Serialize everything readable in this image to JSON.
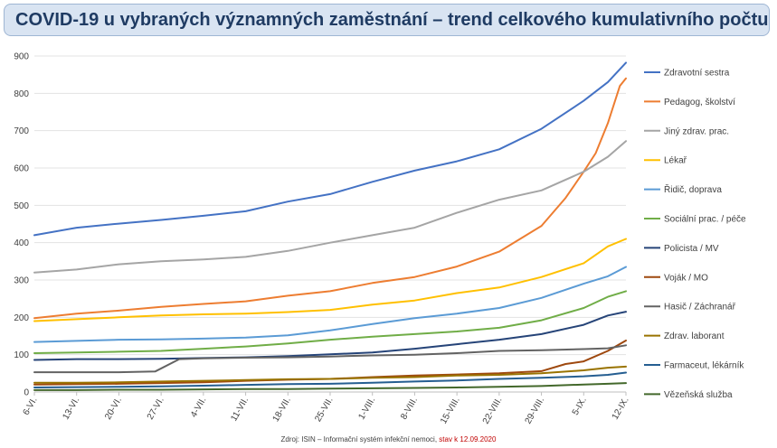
{
  "title": "COVID-19 u vybraných významných zaměstnání – trend celkového kumulativního počtu",
  "source": {
    "prefix": "Zdroj: ISIN – Informační systém infekční nemoci, ",
    "status": "stav k 12.09.2020"
  },
  "chart_data": {
    "type": "line",
    "xlabel": "",
    "ylabel": "",
    "ylim": [
      0,
      900
    ],
    "yticks": [
      0,
      100,
      200,
      300,
      400,
      500,
      600,
      700,
      800,
      900
    ],
    "x_tick_labels": [
      "6-VI.",
      "13-VI.",
      "20-VI.",
      "27-VI.",
      "4-VII.",
      "11-VII.",
      "18-VII.",
      "25-VII.",
      "1-VIII.",
      "8-VIII.",
      "15-VIII.",
      "22-VIII.",
      "29-VIII.",
      "5-IX.",
      "12-IX."
    ],
    "x_tick_days": [
      0,
      7,
      14,
      21,
      28,
      35,
      42,
      49,
      56,
      63,
      70,
      77,
      84,
      91,
      98
    ],
    "x_range_days": [
      0,
      98
    ],
    "grid": true,
    "legend_position": "right",
    "series": [
      {
        "name": "Zdravotní sestra",
        "color": "#4472c4",
        "points": [
          [
            0,
            420
          ],
          [
            7,
            440
          ],
          [
            14,
            451
          ],
          [
            21,
            461
          ],
          [
            28,
            472
          ],
          [
            35,
            484
          ],
          [
            42,
            510
          ],
          [
            49,
            530
          ],
          [
            56,
            563
          ],
          [
            63,
            593
          ],
          [
            70,
            618
          ],
          [
            77,
            650
          ],
          [
            84,
            705
          ],
          [
            91,
            780
          ],
          [
            95,
            830
          ],
          [
            98,
            882
          ]
        ]
      },
      {
        "name": "Pedagog, školství",
        "color": "#ed7d31",
        "points": [
          [
            0,
            198
          ],
          [
            7,
            210
          ],
          [
            14,
            218
          ],
          [
            21,
            228
          ],
          [
            28,
            236
          ],
          [
            35,
            243
          ],
          [
            42,
            258
          ],
          [
            49,
            270
          ],
          [
            56,
            292
          ],
          [
            63,
            308
          ],
          [
            70,
            336
          ],
          [
            77,
            376
          ],
          [
            84,
            445
          ],
          [
            88,
            520
          ],
          [
            91,
            590
          ],
          [
            93,
            640
          ],
          [
            95,
            720
          ],
          [
            97,
            820
          ],
          [
            98,
            840
          ]
        ]
      },
      {
        "name": "Jiný zdrav. prac.",
        "color": "#a5a5a5",
        "points": [
          [
            0,
            320
          ],
          [
            7,
            328
          ],
          [
            14,
            342
          ],
          [
            21,
            350
          ],
          [
            28,
            355
          ],
          [
            35,
            362
          ],
          [
            42,
            378
          ],
          [
            49,
            400
          ],
          [
            56,
            420
          ],
          [
            63,
            440
          ],
          [
            70,
            480
          ],
          [
            77,
            515
          ],
          [
            84,
            540
          ],
          [
            91,
            590
          ],
          [
            95,
            630
          ],
          [
            98,
            672
          ]
        ]
      },
      {
        "name": "Lékař",
        "color": "#ffc000",
        "points": [
          [
            0,
            190
          ],
          [
            7,
            195
          ],
          [
            14,
            200
          ],
          [
            21,
            205
          ],
          [
            28,
            208
          ],
          [
            35,
            210
          ],
          [
            42,
            214
          ],
          [
            49,
            220
          ],
          [
            56,
            234
          ],
          [
            63,
            245
          ],
          [
            70,
            265
          ],
          [
            77,
            280
          ],
          [
            84,
            308
          ],
          [
            91,
            345
          ],
          [
            95,
            390
          ],
          [
            98,
            410
          ]
        ]
      },
      {
        "name": "Řidič, doprava",
        "color": "#5b9bd5",
        "points": [
          [
            0,
            134
          ],
          [
            7,
            137
          ],
          [
            14,
            140
          ],
          [
            21,
            141
          ],
          [
            28,
            143
          ],
          [
            35,
            146
          ],
          [
            42,
            152
          ],
          [
            49,
            165
          ],
          [
            56,
            182
          ],
          [
            63,
            198
          ],
          [
            70,
            210
          ],
          [
            77,
            225
          ],
          [
            84,
            252
          ],
          [
            91,
            290
          ],
          [
            95,
            310
          ],
          [
            98,
            335
          ]
        ]
      },
      {
        "name": "Sociální prac. / péče",
        "color": "#70ad47",
        "points": [
          [
            0,
            104
          ],
          [
            7,
            106
          ],
          [
            14,
            108
          ],
          [
            21,
            110
          ],
          [
            28,
            116
          ],
          [
            35,
            122
          ],
          [
            42,
            130
          ],
          [
            49,
            140
          ],
          [
            56,
            148
          ],
          [
            63,
            155
          ],
          [
            70,
            162
          ],
          [
            77,
            172
          ],
          [
            84,
            192
          ],
          [
            91,
            225
          ],
          [
            95,
            255
          ],
          [
            98,
            270
          ]
        ]
      },
      {
        "name": "Policista / MV",
        "color": "#264478",
        "points": [
          [
            0,
            86
          ],
          [
            7,
            88
          ],
          [
            14,
            88
          ],
          [
            21,
            89
          ],
          [
            28,
            91
          ],
          [
            35,
            93
          ],
          [
            42,
            96
          ],
          [
            49,
            101
          ],
          [
            56,
            106
          ],
          [
            63,
            116
          ],
          [
            70,
            128
          ],
          [
            77,
            140
          ],
          [
            84,
            155
          ],
          [
            91,
            180
          ],
          [
            95,
            205
          ],
          [
            98,
            215
          ]
        ]
      },
      {
        "name": "Voják / MO",
        "color": "#9e480e",
        "points": [
          [
            0,
            20
          ],
          [
            7,
            21
          ],
          [
            14,
            22
          ],
          [
            21,
            24
          ],
          [
            28,
            26
          ],
          [
            35,
            30
          ],
          [
            42,
            33
          ],
          [
            49,
            35
          ],
          [
            56,
            40
          ],
          [
            63,
            44
          ],
          [
            70,
            47
          ],
          [
            77,
            50
          ],
          [
            84,
            56
          ],
          [
            88,
            75
          ],
          [
            91,
            82
          ],
          [
            95,
            110
          ],
          [
            98,
            138
          ]
        ]
      },
      {
        "name": "Hasič / Záchranář",
        "color": "#636363",
        "points": [
          [
            0,
            53
          ],
          [
            7,
            53
          ],
          [
            14,
            53
          ],
          [
            20,
            55
          ],
          [
            24,
            88
          ],
          [
            28,
            90
          ],
          [
            35,
            92
          ],
          [
            42,
            93
          ],
          [
            49,
            95
          ],
          [
            56,
            98
          ],
          [
            63,
            100
          ],
          [
            70,
            104
          ],
          [
            77,
            110
          ],
          [
            84,
            112
          ],
          [
            91,
            115
          ],
          [
            95,
            117
          ],
          [
            98,
            125
          ]
        ]
      },
      {
        "name": "Zdrav. laborant",
        "color": "#997300",
        "points": [
          [
            0,
            25
          ],
          [
            7,
            25
          ],
          [
            14,
            26
          ],
          [
            21,
            28
          ],
          [
            28,
            30
          ],
          [
            35,
            32
          ],
          [
            42,
            34
          ],
          [
            49,
            35
          ],
          [
            56,
            38
          ],
          [
            63,
            40
          ],
          [
            70,
            44
          ],
          [
            77,
            46
          ],
          [
            84,
            50
          ],
          [
            91,
            58
          ],
          [
            95,
            65
          ],
          [
            98,
            68
          ]
        ]
      },
      {
        "name": "Farmaceut, lékárník",
        "color": "#255e91",
        "points": [
          [
            0,
            12
          ],
          [
            7,
            13
          ],
          [
            14,
            14
          ],
          [
            21,
            15
          ],
          [
            28,
            17
          ],
          [
            35,
            19
          ],
          [
            42,
            21
          ],
          [
            49,
            22
          ],
          [
            56,
            25
          ],
          [
            63,
            28
          ],
          [
            70,
            31
          ],
          [
            77,
            35
          ],
          [
            84,
            38
          ],
          [
            91,
            42
          ],
          [
            95,
            46
          ],
          [
            98,
            52
          ]
        ]
      },
      {
        "name": "Vězeňská služba",
        "color": "#43682b",
        "points": [
          [
            0,
            5
          ],
          [
            7,
            5
          ],
          [
            14,
            6
          ],
          [
            21,
            6
          ],
          [
            28,
            7
          ],
          [
            35,
            8
          ],
          [
            42,
            8
          ],
          [
            49,
            9
          ],
          [
            56,
            10
          ],
          [
            63,
            11
          ],
          [
            70,
            12
          ],
          [
            77,
            14
          ],
          [
            84,
            16
          ],
          [
            91,
            20
          ],
          [
            95,
            22
          ],
          [
            98,
            24
          ]
        ]
      }
    ]
  }
}
